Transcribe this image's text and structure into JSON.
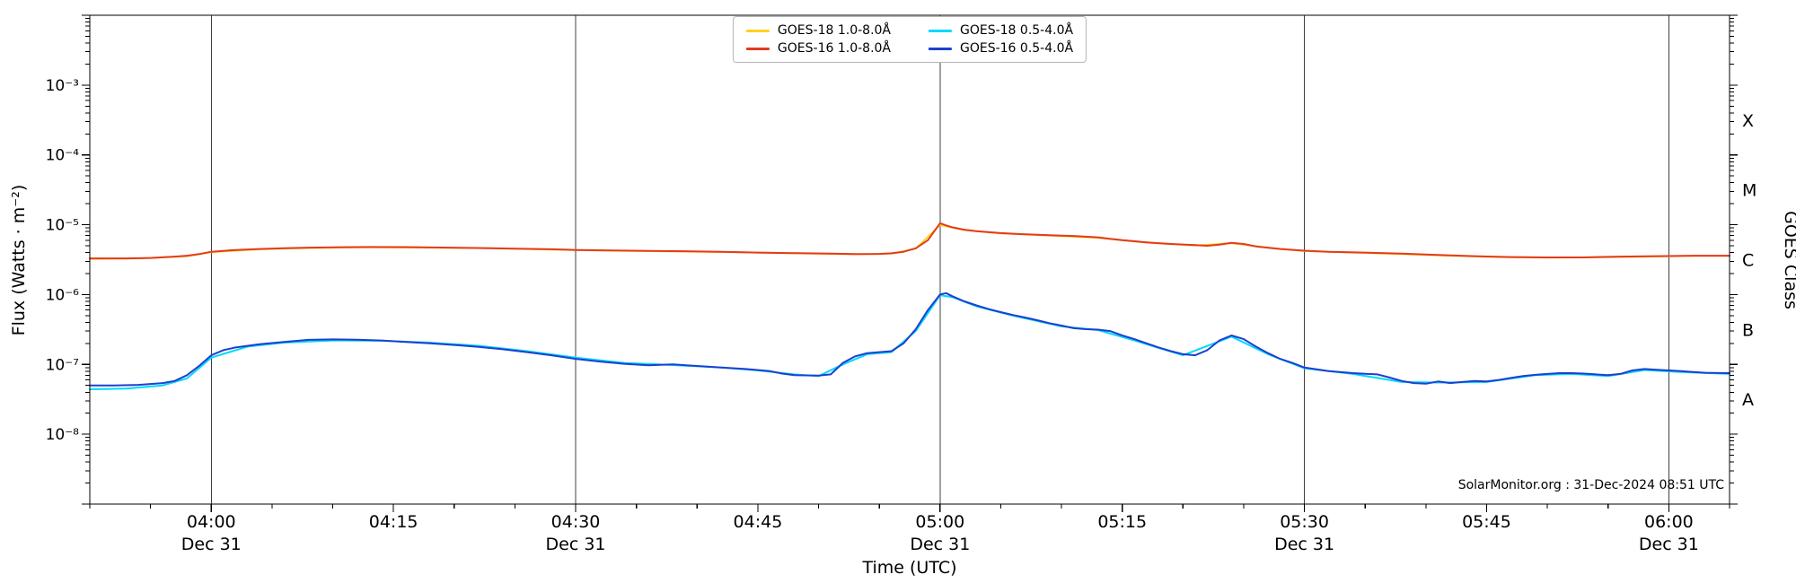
{
  "chart_data": {
    "type": "line",
    "title": "",
    "xlabel": "Time (UTC)",
    "ylabel": "Flux (Watts · m⁻²)",
    "right_axis_label": "GOES Class",
    "annotation": "SolarMonitor.org : 31-Dec-2024 08:51 UTC",
    "grid": "vertical-date-lines",
    "legend_position": "top-center",
    "x_axis": {
      "range_minutes": [
        230,
        365
      ],
      "minor_tick_step_minutes": 5,
      "major_ticks": [
        {
          "minute": 240,
          "label": "04:00",
          "date": "Dec 31"
        },
        {
          "minute": 255,
          "label": "04:15",
          "date": ""
        },
        {
          "minute": 270,
          "label": "04:30",
          "date": "Dec 31"
        },
        {
          "minute": 285,
          "label": "04:45",
          "date": ""
        },
        {
          "minute": 300,
          "label": "05:00",
          "date": "Dec 31"
        },
        {
          "minute": 315,
          "label": "05:15",
          "date": ""
        },
        {
          "minute": 330,
          "label": "05:30",
          "date": "Dec 31"
        },
        {
          "minute": 345,
          "label": "05:45",
          "date": ""
        },
        {
          "minute": 360,
          "label": "06:00",
          "date": "Dec 31"
        }
      ]
    },
    "y_axis": {
      "scale": "log",
      "log_range": [
        -9,
        -2
      ],
      "major_ticks": [
        {
          "exp": -3,
          "label": "10⁻³"
        },
        {
          "exp": -4,
          "label": "10⁻⁴"
        },
        {
          "exp": -5,
          "label": "10⁻⁵"
        },
        {
          "exp": -6,
          "label": "10⁻⁶"
        },
        {
          "exp": -7,
          "label": "10⁻⁷"
        },
        {
          "exp": -8,
          "label": "10⁻⁸"
        }
      ]
    },
    "goes_classes": [
      {
        "label": "X",
        "log_center": -3.5
      },
      {
        "label": "M",
        "log_center": -4.5
      },
      {
        "label": "C",
        "log_center": -5.5
      },
      {
        "label": "B",
        "log_center": -6.5
      },
      {
        "label": "A",
        "log_center": -7.5
      }
    ],
    "series": [
      {
        "name": "goes18-long",
        "label": "GOES-18 1.0-8.0Å",
        "color": "#ffd21f",
        "points": [
          [
            230,
            3.25e-06
          ],
          [
            234,
            3.3e-06
          ],
          [
            238,
            3.55e-06
          ],
          [
            240,
            4.05e-06
          ],
          [
            244,
            4.45e-06
          ],
          [
            248,
            4.65e-06
          ],
          [
            253,
            4.75e-06
          ],
          [
            258,
            4.7e-06
          ],
          [
            263,
            4.6e-06
          ],
          [
            268,
            4.4e-06
          ],
          [
            273,
            4.25e-06
          ],
          [
            278,
            4.15e-06
          ],
          [
            283,
            4.05e-06
          ],
          [
            288,
            3.9e-06
          ],
          [
            293,
            3.78e-06
          ],
          [
            296,
            3.85e-06
          ],
          [
            298,
            4.55e-06
          ],
          [
            300,
            9.9e-06
          ],
          [
            302,
            8.4e-06
          ],
          [
            305,
            7.5e-06
          ],
          [
            309,
            7e-06
          ],
          [
            313,
            6.5e-06
          ],
          [
            317,
            5.55e-06
          ],
          [
            321,
            5.05e-06
          ],
          [
            324,
            5.45e-06
          ],
          [
            327,
            4.7e-06
          ],
          [
            330,
            4.2e-06
          ],
          [
            334,
            4e-06
          ],
          [
            338,
            3.8e-06
          ],
          [
            342,
            3.6e-06
          ],
          [
            346,
            3.45e-06
          ],
          [
            350,
            3.38e-06
          ],
          [
            354,
            3.42e-06
          ],
          [
            358,
            3.5e-06
          ],
          [
            362,
            3.58e-06
          ],
          [
            365,
            3.58e-06
          ]
        ]
      },
      {
        "name": "goes16-long",
        "label": "GOES-16 1.0-8.0Å",
        "color": "#e23b1e",
        "points": [
          [
            230,
            3.3e-06
          ],
          [
            233,
            3.3e-06
          ],
          [
            235,
            3.35e-06
          ],
          [
            237,
            3.5e-06
          ],
          [
            238,
            3.6e-06
          ],
          [
            239,
            3.8e-06
          ],
          [
            240,
            4.1e-06
          ],
          [
            242,
            4.35e-06
          ],
          [
            244,
            4.5e-06
          ],
          [
            246,
            4.6e-06
          ],
          [
            248,
            4.7e-06
          ],
          [
            250,
            4.75e-06
          ],
          [
            253,
            4.8e-06
          ],
          [
            256,
            4.78e-06
          ],
          [
            259,
            4.72e-06
          ],
          [
            262,
            4.65e-06
          ],
          [
            265,
            4.55e-06
          ],
          [
            268,
            4.45e-06
          ],
          [
            270,
            4.35e-06
          ],
          [
            273,
            4.28e-06
          ],
          [
            276,
            4.22e-06
          ],
          [
            279,
            4.18e-06
          ],
          [
            282,
            4.1e-06
          ],
          [
            285,
            4e-06
          ],
          [
            288,
            3.92e-06
          ],
          [
            291,
            3.85e-06
          ],
          [
            293,
            3.8e-06
          ],
          [
            295,
            3.82e-06
          ],
          [
            296,
            3.9e-06
          ],
          [
            297,
            4.1e-06
          ],
          [
            298,
            4.6e-06
          ],
          [
            299,
            6e-06
          ],
          [
            300,
            1.05e-05
          ],
          [
            300.5,
            9.8e-06
          ],
          [
            301,
            9.2e-06
          ],
          [
            302,
            8.5e-06
          ],
          [
            303,
            8.1e-06
          ],
          [
            305,
            7.6e-06
          ],
          [
            307,
            7.3e-06
          ],
          [
            309,
            7.1e-06
          ],
          [
            311,
            6.9e-06
          ],
          [
            313,
            6.6e-06
          ],
          [
            314,
            6.3e-06
          ],
          [
            315,
            6e-06
          ],
          [
            317,
            5.6e-06
          ],
          [
            319,
            5.3e-06
          ],
          [
            321,
            5.1e-06
          ],
          [
            322,
            5e-06
          ],
          [
            323,
            5.2e-06
          ],
          [
            324,
            5.5e-06
          ],
          [
            325,
            5.3e-06
          ],
          [
            326,
            4.9e-06
          ],
          [
            328,
            4.5e-06
          ],
          [
            330,
            4.25e-06
          ],
          [
            332,
            4.1e-06
          ],
          [
            335,
            4e-06
          ],
          [
            338,
            3.85e-06
          ],
          [
            341,
            3.7e-06
          ],
          [
            344,
            3.55e-06
          ],
          [
            347,
            3.45e-06
          ],
          [
            350,
            3.4e-06
          ],
          [
            353,
            3.4e-06
          ],
          [
            356,
            3.5e-06
          ],
          [
            359,
            3.55e-06
          ],
          [
            362,
            3.6e-06
          ],
          [
            365,
            3.6e-06
          ]
        ]
      },
      {
        "name": "goes18-short",
        "label": "GOES-18 0.5-4.0Å",
        "color": "#00d8ff",
        "points": [
          [
            230,
            4.4e-08
          ],
          [
            233,
            4.5e-08
          ],
          [
            236,
            5e-08
          ],
          [
            238,
            6.3e-08
          ],
          [
            240,
            1.25e-07
          ],
          [
            243,
            1.8e-07
          ],
          [
            246,
            2.05e-07
          ],
          [
            250,
            2.2e-07
          ],
          [
            254,
            2.18e-07
          ],
          [
            258,
            2.05e-07
          ],
          [
            262,
            1.85e-07
          ],
          [
            266,
            1.55e-07
          ],
          [
            270,
            1.25e-07
          ],
          [
            274,
            1.05e-07
          ],
          [
            278,
            9.8e-08
          ],
          [
            282,
            9e-08
          ],
          [
            285,
            8.2e-08
          ],
          [
            288,
            7.2e-08
          ],
          [
            290,
            6.8e-08
          ],
          [
            292,
            1e-07
          ],
          [
            294,
            1.4e-07
          ],
          [
            296,
            1.5e-07
          ],
          [
            298,
            3e-07
          ],
          [
            300,
            9.8e-07
          ],
          [
            301,
            9.2e-07
          ],
          [
            303,
            6.8e-07
          ],
          [
            306,
            5e-07
          ],
          [
            310,
            3.5e-07
          ],
          [
            313,
            3.1e-07
          ],
          [
            316,
            2.2e-07
          ],
          [
            320,
            1.35e-07
          ],
          [
            324,
            2.5e-07
          ],
          [
            327,
            1.4e-07
          ],
          [
            330,
            8.8e-08
          ],
          [
            334,
            7.3e-08
          ],
          [
            338,
            5.6e-08
          ],
          [
            341,
            5.5e-08
          ],
          [
            345,
            5.6e-08
          ],
          [
            349,
            7e-08
          ],
          [
            352,
            7.3e-08
          ],
          [
            355,
            6.8e-08
          ],
          [
            358,
            8.3e-08
          ],
          [
            361,
            7.8e-08
          ],
          [
            365,
            7.3e-08
          ]
        ]
      },
      {
        "name": "goes16-short",
        "label": "GOES-16 0.5-4.0Å",
        "color": "#1c40d0",
        "points": [
          [
            230,
            5e-08
          ],
          [
            232,
            5e-08
          ],
          [
            234,
            5.1e-08
          ],
          [
            236,
            5.4e-08
          ],
          [
            237,
            5.8e-08
          ],
          [
            238,
            7e-08
          ],
          [
            239,
            9.5e-08
          ],
          [
            240,
            1.35e-07
          ],
          [
            241,
            1.6e-07
          ],
          [
            242,
            1.75e-07
          ],
          [
            244,
            1.95e-07
          ],
          [
            246,
            2.1e-07
          ],
          [
            248,
            2.25e-07
          ],
          [
            250,
            2.28e-07
          ],
          [
            252,
            2.26e-07
          ],
          [
            254,
            2.2e-07
          ],
          [
            256,
            2.1e-07
          ],
          [
            258,
            2e-07
          ],
          [
            260,
            1.9e-07
          ],
          [
            262,
            1.78e-07
          ],
          [
            264,
            1.65e-07
          ],
          [
            266,
            1.5e-07
          ],
          [
            268,
            1.35e-07
          ],
          [
            270,
            1.2e-07
          ],
          [
            272,
            1.1e-07
          ],
          [
            274,
            1.02e-07
          ],
          [
            276,
            9.7e-08
          ],
          [
            278,
            1e-07
          ],
          [
            280,
            9.5e-08
          ],
          [
            282,
            9e-08
          ],
          [
            284,
            8.6e-08
          ],
          [
            286,
            8e-08
          ],
          [
            287,
            7.4e-08
          ],
          [
            288,
            7e-08
          ],
          [
            290,
            6.9e-08
          ],
          [
            291,
            7.2e-08
          ],
          [
            292,
            1.05e-07
          ],
          [
            293,
            1.3e-07
          ],
          [
            294,
            1.45e-07
          ],
          [
            295,
            1.5e-07
          ],
          [
            296,
            1.55e-07
          ],
          [
            297,
            2e-07
          ],
          [
            298,
            3.2e-07
          ],
          [
            299,
            6e-07
          ],
          [
            300,
            1e-06
          ],
          [
            300.5,
            1.05e-06
          ],
          [
            301,
            9.5e-07
          ],
          [
            302,
            8e-07
          ],
          [
            303,
            7e-07
          ],
          [
            304,
            6.2e-07
          ],
          [
            305,
            5.6e-07
          ],
          [
            306,
            5.1e-07
          ],
          [
            307,
            4.7e-07
          ],
          [
            308,
            4.3e-07
          ],
          [
            309,
            3.9e-07
          ],
          [
            310,
            3.6e-07
          ],
          [
            311,
            3.3e-07
          ],
          [
            312,
            3.2e-07
          ],
          [
            313,
            3.15e-07
          ],
          [
            314,
            3e-07
          ],
          [
            315,
            2.6e-07
          ],
          [
            316,
            2.3e-07
          ],
          [
            317,
            2e-07
          ],
          [
            318,
            1.75e-07
          ],
          [
            319,
            1.55e-07
          ],
          [
            320,
            1.4e-07
          ],
          [
            321,
            1.35e-07
          ],
          [
            322,
            1.6e-07
          ],
          [
            323,
            2.2e-07
          ],
          [
            324,
            2.6e-07
          ],
          [
            325,
            2.3e-07
          ],
          [
            326,
            1.8e-07
          ],
          [
            327,
            1.45e-07
          ],
          [
            328,
            1.2e-07
          ],
          [
            329,
            1.05e-07
          ],
          [
            330,
            9e-08
          ],
          [
            332,
            8e-08
          ],
          [
            334,
            7.5e-08
          ],
          [
            336,
            7.2e-08
          ],
          [
            337,
            6.5e-08
          ],
          [
            338,
            5.8e-08
          ],
          [
            339,
            5.4e-08
          ],
          [
            340,
            5.3e-08
          ],
          [
            341,
            5.7e-08
          ],
          [
            342,
            5.4e-08
          ],
          [
            343,
            5.6e-08
          ],
          [
            344,
            5.8e-08
          ],
          [
            345,
            5.7e-08
          ],
          [
            346,
            6e-08
          ],
          [
            347,
            6.4e-08
          ],
          [
            348,
            6.8e-08
          ],
          [
            349,
            7.1e-08
          ],
          [
            350,
            7.3e-08
          ],
          [
            351,
            7.5e-08
          ],
          [
            352,
            7.5e-08
          ],
          [
            353,
            7.4e-08
          ],
          [
            354,
            7.2e-08
          ],
          [
            355,
            7e-08
          ],
          [
            356,
            7.3e-08
          ],
          [
            357,
            8.2e-08
          ],
          [
            358,
            8.6e-08
          ],
          [
            359,
            8.4e-08
          ],
          [
            360,
            8.2e-08
          ],
          [
            361,
            8e-08
          ],
          [
            362,
            7.8e-08
          ],
          [
            363,
            7.6e-08
          ],
          [
            365,
            7.5e-08
          ]
        ]
      }
    ]
  },
  "colors": {
    "grid_line": "#404040",
    "axis": "#000000",
    "background": "#ffffff",
    "legend_border": "#b7b7b7"
  }
}
